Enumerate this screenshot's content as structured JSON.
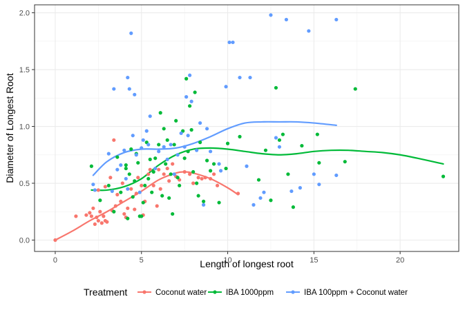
{
  "chart_data": {
    "type": "scatter",
    "xlabel": "Length of longest root",
    "ylabel": "Diameter of Longest Root",
    "xlim": [
      -1.2,
      23.4
    ],
    "ylim": [
      -0.1,
      2.07
    ],
    "x_ticks": [
      0,
      5,
      10,
      15,
      20
    ],
    "y_ticks": [
      0.0,
      0.5,
      1.0,
      1.5,
      2.0
    ],
    "x_tick_labels": [
      "0",
      "5",
      "10",
      "15",
      "20"
    ],
    "y_tick_labels": [
      "0.0",
      "0.5",
      "1.0",
      "1.5",
      "2.0"
    ],
    "grid": true,
    "legend": {
      "title": "Treatment",
      "position": "bottom"
    },
    "series": [
      {
        "name": "Coconut water",
        "color": "#F8766D",
        "points": [
          [
            0.0,
            0.0
          ],
          [
            1.2,
            0.21
          ],
          [
            1.8,
            0.22
          ],
          [
            2.0,
            0.24
          ],
          [
            2.1,
            0.21
          ],
          [
            2.2,
            0.28
          ],
          [
            2.3,
            0.14
          ],
          [
            2.4,
            0.2
          ],
          [
            2.5,
            0.17
          ],
          [
            2.6,
            0.25
          ],
          [
            2.7,
            0.15
          ],
          [
            2.8,
            0.21
          ],
          [
            2.9,
            0.17
          ],
          [
            3.0,
            0.16
          ],
          [
            2.5,
            0.44
          ],
          [
            2.9,
            0.47
          ],
          [
            3.2,
            0.55
          ],
          [
            3.3,
            0.26
          ],
          [
            3.4,
            0.88
          ],
          [
            3.5,
            0.3
          ],
          [
            3.6,
            0.4
          ],
          [
            3.8,
            0.34
          ],
          [
            3.9,
            0.5
          ],
          [
            4.0,
            0.23
          ],
          [
            4.1,
            0.2
          ],
          [
            4.2,
            0.28
          ],
          [
            4.4,
            0.45
          ],
          [
            4.6,
            0.27
          ],
          [
            4.7,
            0.41
          ],
          [
            4.8,
            0.55
          ],
          [
            5.0,
            0.48
          ],
          [
            5.1,
            0.22
          ],
          [
            5.2,
            0.34
          ],
          [
            5.4,
            0.58
          ],
          [
            5.5,
            0.62
          ],
          [
            5.7,
            0.48
          ],
          [
            5.9,
            0.3
          ],
          [
            6.0,
            0.62
          ],
          [
            6.1,
            0.45
          ],
          [
            6.3,
            0.58
          ],
          [
            6.5,
            0.63
          ],
          [
            6.6,
            0.52
          ],
          [
            6.8,
            0.67
          ],
          [
            7.0,
            0.56
          ],
          [
            7.2,
            0.53
          ],
          [
            7.5,
            0.6
          ],
          [
            7.8,
            0.58
          ],
          [
            8.0,
            0.5
          ],
          [
            8.3,
            0.55
          ],
          [
            8.5,
            0.54
          ],
          [
            8.7,
            0.55
          ],
          [
            9.0,
            0.54
          ],
          [
            9.2,
            0.58
          ],
          [
            9.4,
            0.48
          ],
          [
            10.6,
            0.41
          ]
        ],
        "smooth": [
          [
            0.0,
            0.0
          ],
          [
            1.0,
            0.08
          ],
          [
            2.0,
            0.17
          ],
          [
            3.0,
            0.25
          ],
          [
            4.0,
            0.34
          ],
          [
            5.0,
            0.43
          ],
          [
            6.0,
            0.53
          ],
          [
            7.0,
            0.59
          ],
          [
            7.5,
            0.6
          ],
          [
            8.0,
            0.59
          ],
          [
            9.0,
            0.54
          ],
          [
            10.0,
            0.46
          ],
          [
            10.6,
            0.4
          ]
        ]
      },
      {
        "name": "IBA 1000ppm",
        "color": "#00BA38",
        "points": [
          [
            2.1,
            0.65
          ],
          [
            2.6,
            0.35
          ],
          [
            3.1,
            0.48
          ],
          [
            3.4,
            0.25
          ],
          [
            3.6,
            0.73
          ],
          [
            3.8,
            0.42
          ],
          [
            4.1,
            0.66
          ],
          [
            4.2,
            0.19
          ],
          [
            4.3,
            0.58
          ],
          [
            4.4,
            0.8
          ],
          [
            4.5,
            0.38
          ],
          [
            4.6,
            0.52
          ],
          [
            4.7,
            0.76
          ],
          [
            4.8,
            0.68
          ],
          [
            4.9,
            0.21
          ],
          [
            5.0,
            0.21
          ],
          [
            5.1,
            0.33
          ],
          [
            5.2,
            0.48
          ],
          [
            5.4,
            0.54
          ],
          [
            5.5,
            0.71
          ],
          [
            5.6,
            0.42
          ],
          [
            5.7,
            0.6
          ],
          [
            5.8,
            0.72
          ],
          [
            6.0,
            0.84
          ],
          [
            6.1,
            1.12
          ],
          [
            6.2,
            0.39
          ],
          [
            6.3,
            0.98
          ],
          [
            6.4,
            0.67
          ],
          [
            6.5,
            0.88
          ],
          [
            6.6,
            0.37
          ],
          [
            6.7,
            0.58
          ],
          [
            6.9,
            0.84
          ],
          [
            7.0,
            1.05
          ],
          [
            7.1,
            0.55
          ],
          [
            7.2,
            0.48
          ],
          [
            7.4,
            0.96
          ],
          [
            7.5,
            0.72
          ],
          [
            7.6,
            1.42
          ],
          [
            7.7,
            0.78
          ],
          [
            7.8,
            1.18
          ],
          [
            7.9,
            0.97
          ],
          [
            8.0,
            0.6
          ],
          [
            8.1,
            1.3
          ],
          [
            8.2,
            0.5
          ],
          [
            8.3,
            0.39
          ],
          [
            8.4,
            0.86
          ],
          [
            8.6,
            0.34
          ],
          [
            8.8,
            0.7
          ],
          [
            9.0,
            0.61
          ],
          [
            9.2,
            0.67
          ],
          [
            9.5,
            0.33
          ],
          [
            9.9,
            0.63
          ],
          [
            10.0,
            0.85
          ],
          [
            10.7,
            0.91
          ],
          [
            11.8,
            0.53
          ],
          [
            12.2,
            0.79
          ],
          [
            12.5,
            0.35
          ],
          [
            12.8,
            1.34
          ],
          [
            13.0,
            0.88
          ],
          [
            13.2,
            0.93
          ],
          [
            13.5,
            0.58
          ],
          [
            13.8,
            0.29
          ],
          [
            14.3,
            0.83
          ],
          [
            15.2,
            0.93
          ],
          [
            15.3,
            0.68
          ],
          [
            16.8,
            0.69
          ],
          [
            17.4,
            1.33
          ],
          [
            22.5,
            0.56
          ],
          [
            4.1,
            0.63
          ],
          [
            5.3,
            0.86
          ],
          [
            6.8,
            0.23
          ]
        ],
        "smooth": [
          [
            2.1,
            0.44
          ],
          [
            3.0,
            0.44
          ],
          [
            4.0,
            0.47
          ],
          [
            5.0,
            0.54
          ],
          [
            6.0,
            0.66
          ],
          [
            7.0,
            0.75
          ],
          [
            8.0,
            0.8
          ],
          [
            9.0,
            0.81
          ],
          [
            10.0,
            0.8
          ],
          [
            11.0,
            0.78
          ],
          [
            12.0,
            0.76
          ],
          [
            13.0,
            0.75
          ],
          [
            14.0,
            0.76
          ],
          [
            15.0,
            0.78
          ],
          [
            16.0,
            0.79
          ],
          [
            17.0,
            0.79
          ],
          [
            18.0,
            0.78
          ],
          [
            19.0,
            0.77
          ],
          [
            20.0,
            0.75
          ],
          [
            21.0,
            0.72
          ],
          [
            22.5,
            0.67
          ]
        ]
      },
      {
        "name": "IBA 100ppm + Coconut water",
        "color": "#619CFF",
        "points": [
          [
            2.2,
            0.49
          ],
          [
            2.3,
            0.44
          ],
          [
            3.1,
            0.76
          ],
          [
            3.3,
            0.43
          ],
          [
            3.4,
            1.33
          ],
          [
            3.6,
            0.62
          ],
          [
            3.8,
            0.66
          ],
          [
            4.0,
            0.79
          ],
          [
            4.1,
            0.54
          ],
          [
            4.2,
            0.45
          ],
          [
            4.2,
            1.43
          ],
          [
            4.3,
            1.33
          ],
          [
            4.4,
            1.82
          ],
          [
            4.5,
            0.92
          ],
          [
            4.6,
            1.28
          ],
          [
            4.7,
            0.75
          ],
          [
            4.9,
            0.42
          ],
          [
            5.0,
            0.81
          ],
          [
            5.1,
            0.88
          ],
          [
            5.3,
            0.96
          ],
          [
            5.4,
            0.84
          ],
          [
            5.5,
            1.09
          ],
          [
            5.8,
            0.63
          ],
          [
            6.0,
            0.78
          ],
          [
            6.3,
            0.82
          ],
          [
            6.5,
            0.71
          ],
          [
            6.7,
            0.84
          ],
          [
            6.9,
            0.58
          ],
          [
            7.1,
            0.75
          ],
          [
            7.3,
            0.94
          ],
          [
            7.5,
            0.82
          ],
          [
            7.6,
            1.26
          ],
          [
            7.7,
            0.92
          ],
          [
            7.8,
            1.45
          ],
          [
            7.9,
            1.22
          ],
          [
            8.2,
            0.79
          ],
          [
            8.4,
            1.03
          ],
          [
            8.6,
            0.31
          ],
          [
            8.8,
            0.98
          ],
          [
            9.0,
            0.78
          ],
          [
            9.5,
            0.67
          ],
          [
            9.6,
            0.61
          ],
          [
            9.9,
            1.35
          ],
          [
            10.1,
            1.74
          ],
          [
            10.3,
            1.74
          ],
          [
            10.7,
            1.43
          ],
          [
            11.1,
            0.65
          ],
          [
            11.3,
            1.43
          ],
          [
            11.9,
            0.37
          ],
          [
            12.1,
            0.42
          ],
          [
            12.5,
            1.98
          ],
          [
            12.8,
            0.9
          ],
          [
            13.0,
            0.82
          ],
          [
            13.4,
            1.94
          ],
          [
            13.7,
            0.43
          ],
          [
            14.2,
            0.46
          ],
          [
            14.7,
            1.84
          ],
          [
            15.0,
            0.58
          ],
          [
            15.3,
            0.49
          ],
          [
            16.3,
            1.94
          ],
          [
            16.3,
            0.57
          ],
          [
            11.5,
            0.31
          ]
        ],
        "smooth": [
          [
            2.2,
            0.57
          ],
          [
            3.0,
            0.69
          ],
          [
            4.0,
            0.77
          ],
          [
            5.0,
            0.8
          ],
          [
            6.0,
            0.8
          ],
          [
            7.0,
            0.81
          ],
          [
            8.0,
            0.85
          ],
          [
            9.0,
            0.91
          ],
          [
            10.0,
            0.98
          ],
          [
            11.0,
            1.03
          ],
          [
            12.0,
            1.04
          ],
          [
            13.0,
            1.04
          ],
          [
            14.0,
            1.04
          ],
          [
            15.0,
            1.03
          ],
          [
            16.3,
            1.01
          ]
        ]
      }
    ]
  }
}
